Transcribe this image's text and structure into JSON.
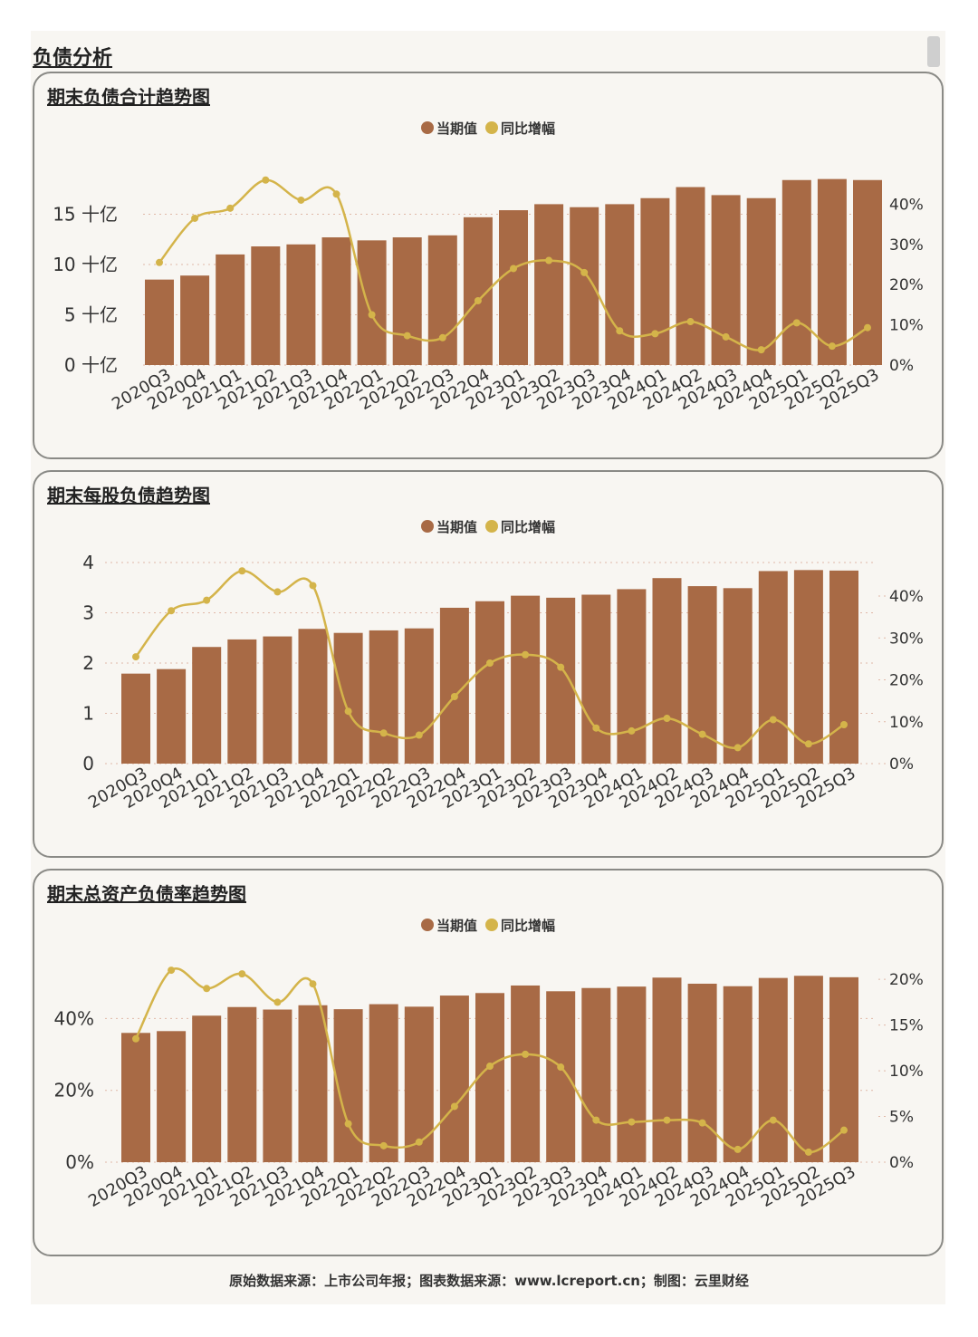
{
  "section_title": "负债分析",
  "footer": "原始数据来源：上市公司年报；图表数据来源：www.lcreport.cn；制图：云里财经",
  "colors": {
    "bar": "#a86a45",
    "line": "#d4b44a",
    "grid": "#e0b8a8",
    "text": "#333333"
  },
  "chart_data": [
    {
      "type": "bar",
      "title": "期末负债合计趋势图",
      "legend": {
        "bar": "当期值",
        "line": "同比增幅"
      },
      "categories": [
        "2020Q3",
        "2020Q4",
        "2021Q1",
        "2021Q2",
        "2021Q3",
        "2021Q4",
        "2022Q1",
        "2022Q2",
        "2022Q3",
        "2022Q4",
        "2023Q1",
        "2023Q2",
        "2023Q3",
        "2023Q4",
        "2024Q1",
        "2024Q2",
        "2024Q3",
        "2024Q4",
        "2025Q1",
        "2025Q2",
        "2025Q3"
      ],
      "values": [
        8.5,
        8.9,
        11.0,
        11.8,
        12.0,
        12.7,
        12.4,
        12.7,
        12.9,
        14.7,
        15.4,
        16.0,
        15.7,
        16.0,
        16.6,
        17.7,
        16.9,
        16.6,
        18.4,
        18.5,
        18.4
      ],
      "growth": [
        25.5,
        36.5,
        39.0,
        46.0,
        41.0,
        42.5,
        12.5,
        7.3,
        6.8,
        16.0,
        24.0,
        26.0,
        23.0,
        8.5,
        7.8,
        10.8,
        7.0,
        3.8,
        10.5,
        4.7,
        9.3
      ],
      "y_left": {
        "ticks": [
          0,
          5,
          10,
          15
        ],
        "tick_labels": [
          "0 十亿",
          "5 十亿",
          "10 十亿",
          "15 十亿"
        ],
        "range": [
          0,
          20
        ]
      },
      "y_right": {
        "ticks": [
          0,
          10,
          20,
          30,
          40
        ],
        "tick_labels": [
          "0%",
          "10%",
          "20%",
          "30%",
          "40%"
        ],
        "range": [
          0,
          50
        ]
      }
    },
    {
      "type": "bar",
      "title": "期末每股负债趋势图",
      "legend": {
        "bar": "当期值",
        "line": "同比增幅"
      },
      "categories": [
        "2020Q3",
        "2020Q4",
        "2021Q1",
        "2021Q2",
        "2021Q3",
        "2021Q4",
        "2022Q1",
        "2022Q2",
        "2022Q3",
        "2022Q4",
        "2023Q1",
        "2023Q2",
        "2023Q3",
        "2023Q4",
        "2024Q1",
        "2024Q2",
        "2024Q3",
        "2024Q4",
        "2025Q1",
        "2025Q2",
        "2025Q3"
      ],
      "values": [
        1.79,
        1.88,
        2.32,
        2.47,
        2.53,
        2.68,
        2.6,
        2.65,
        2.69,
        3.1,
        3.23,
        3.34,
        3.3,
        3.36,
        3.47,
        3.69,
        3.53,
        3.49,
        3.83,
        3.85,
        3.84
      ],
      "growth": [
        25.5,
        36.5,
        39.0,
        46.0,
        41.0,
        42.5,
        12.5,
        7.3,
        6.8,
        16.0,
        24.0,
        26.0,
        23.0,
        8.5,
        7.8,
        10.8,
        7.0,
        3.8,
        10.5,
        4.7,
        9.3
      ],
      "y_left": {
        "ticks": [
          0,
          1,
          2,
          3,
          4
        ],
        "tick_labels": [
          "0",
          "1",
          "2",
          "3",
          "4"
        ],
        "range": [
          0,
          4
        ]
      },
      "y_right": {
        "ticks": [
          0,
          10,
          20,
          30,
          40
        ],
        "tick_labels": [
          "0%",
          "10%",
          "20%",
          "30%",
          "40%"
        ],
        "range": [
          0,
          48
        ]
      }
    },
    {
      "type": "bar",
      "title": "期末总资产负债率趋势图",
      "legend": {
        "bar": "当期值",
        "line": "同比增幅"
      },
      "categories": [
        "2020Q3",
        "2020Q4",
        "2021Q1",
        "2021Q2",
        "2021Q3",
        "2021Q4",
        "2022Q1",
        "2022Q2",
        "2022Q3",
        "2022Q4",
        "2023Q1",
        "2023Q2",
        "2023Q3",
        "2023Q4",
        "2024Q1",
        "2024Q2",
        "2024Q3",
        "2024Q4",
        "2025Q1",
        "2025Q2",
        "2025Q3"
      ],
      "values": [
        36.0,
        36.5,
        40.8,
        43.2,
        42.5,
        43.7,
        42.6,
        44.0,
        43.3,
        46.4,
        47.1,
        49.2,
        47.6,
        48.5,
        48.9,
        51.4,
        49.7,
        49.0,
        51.3,
        51.9,
        51.5
      ],
      "growth": [
        13.5,
        21.0,
        19.0,
        20.6,
        17.5,
        19.5,
        4.2,
        1.8,
        2.2,
        6.1,
        10.5,
        11.8,
        10.4,
        4.6,
        4.4,
        4.6,
        4.3,
        1.4,
        4.6,
        1.1,
        3.5
      ],
      "y_left": {
        "ticks": [
          0,
          20,
          40
        ],
        "tick_labels": [
          "0%",
          "20%",
          "40%"
        ],
        "range": [
          0,
          56
        ]
      },
      "y_right": {
        "ticks": [
          0,
          5,
          10,
          15,
          20
        ],
        "tick_labels": [
          "0%",
          "5%",
          "10%",
          "15%",
          "20%"
        ],
        "range": [
          0,
          22
        ]
      }
    }
  ]
}
